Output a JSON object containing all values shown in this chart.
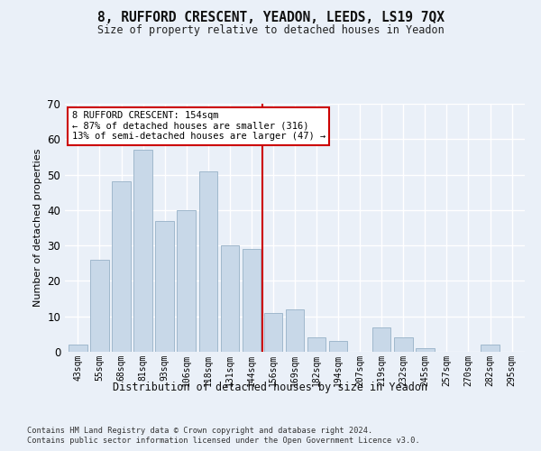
{
  "title": "8, RUFFORD CRESCENT, YEADON, LEEDS, LS19 7QX",
  "subtitle": "Size of property relative to detached houses in Yeadon",
  "xlabel": "Distribution of detached houses by size in Yeadon",
  "ylabel": "Number of detached properties",
  "categories": [
    "43sqm",
    "55sqm",
    "68sqm",
    "81sqm",
    "93sqm",
    "106sqm",
    "118sqm",
    "131sqm",
    "144sqm",
    "156sqm",
    "169sqm",
    "182sqm",
    "194sqm",
    "207sqm",
    "219sqm",
    "232sqm",
    "245sqm",
    "257sqm",
    "270sqm",
    "282sqm",
    "295sqm"
  ],
  "values": [
    2,
    26,
    48,
    57,
    37,
    40,
    51,
    30,
    29,
    11,
    12,
    4,
    3,
    0,
    7,
    4,
    1,
    0,
    0,
    2,
    0
  ],
  "bar_color": "#c8d8e8",
  "bar_edge_color": "#a0b8cc",
  "vline_color": "#cc0000",
  "annotation_title": "8 RUFFORD CRESCENT: 154sqm",
  "annotation_line1": "← 87% of detached houses are smaller (316)",
  "annotation_line2": "13% of semi-detached houses are larger (47) →",
  "annotation_box_color": "#ffffff",
  "annotation_box_edge": "#cc0000",
  "ylim": [
    0,
    70
  ],
  "yticks": [
    0,
    10,
    20,
    30,
    40,
    50,
    60,
    70
  ],
  "bg_color": "#eaf0f8",
  "grid_color": "#ffffff",
  "fig_bg_color": "#eaf0f8",
  "footer1": "Contains HM Land Registry data © Crown copyright and database right 2024.",
  "footer2": "Contains public sector information licensed under the Open Government Licence v3.0."
}
